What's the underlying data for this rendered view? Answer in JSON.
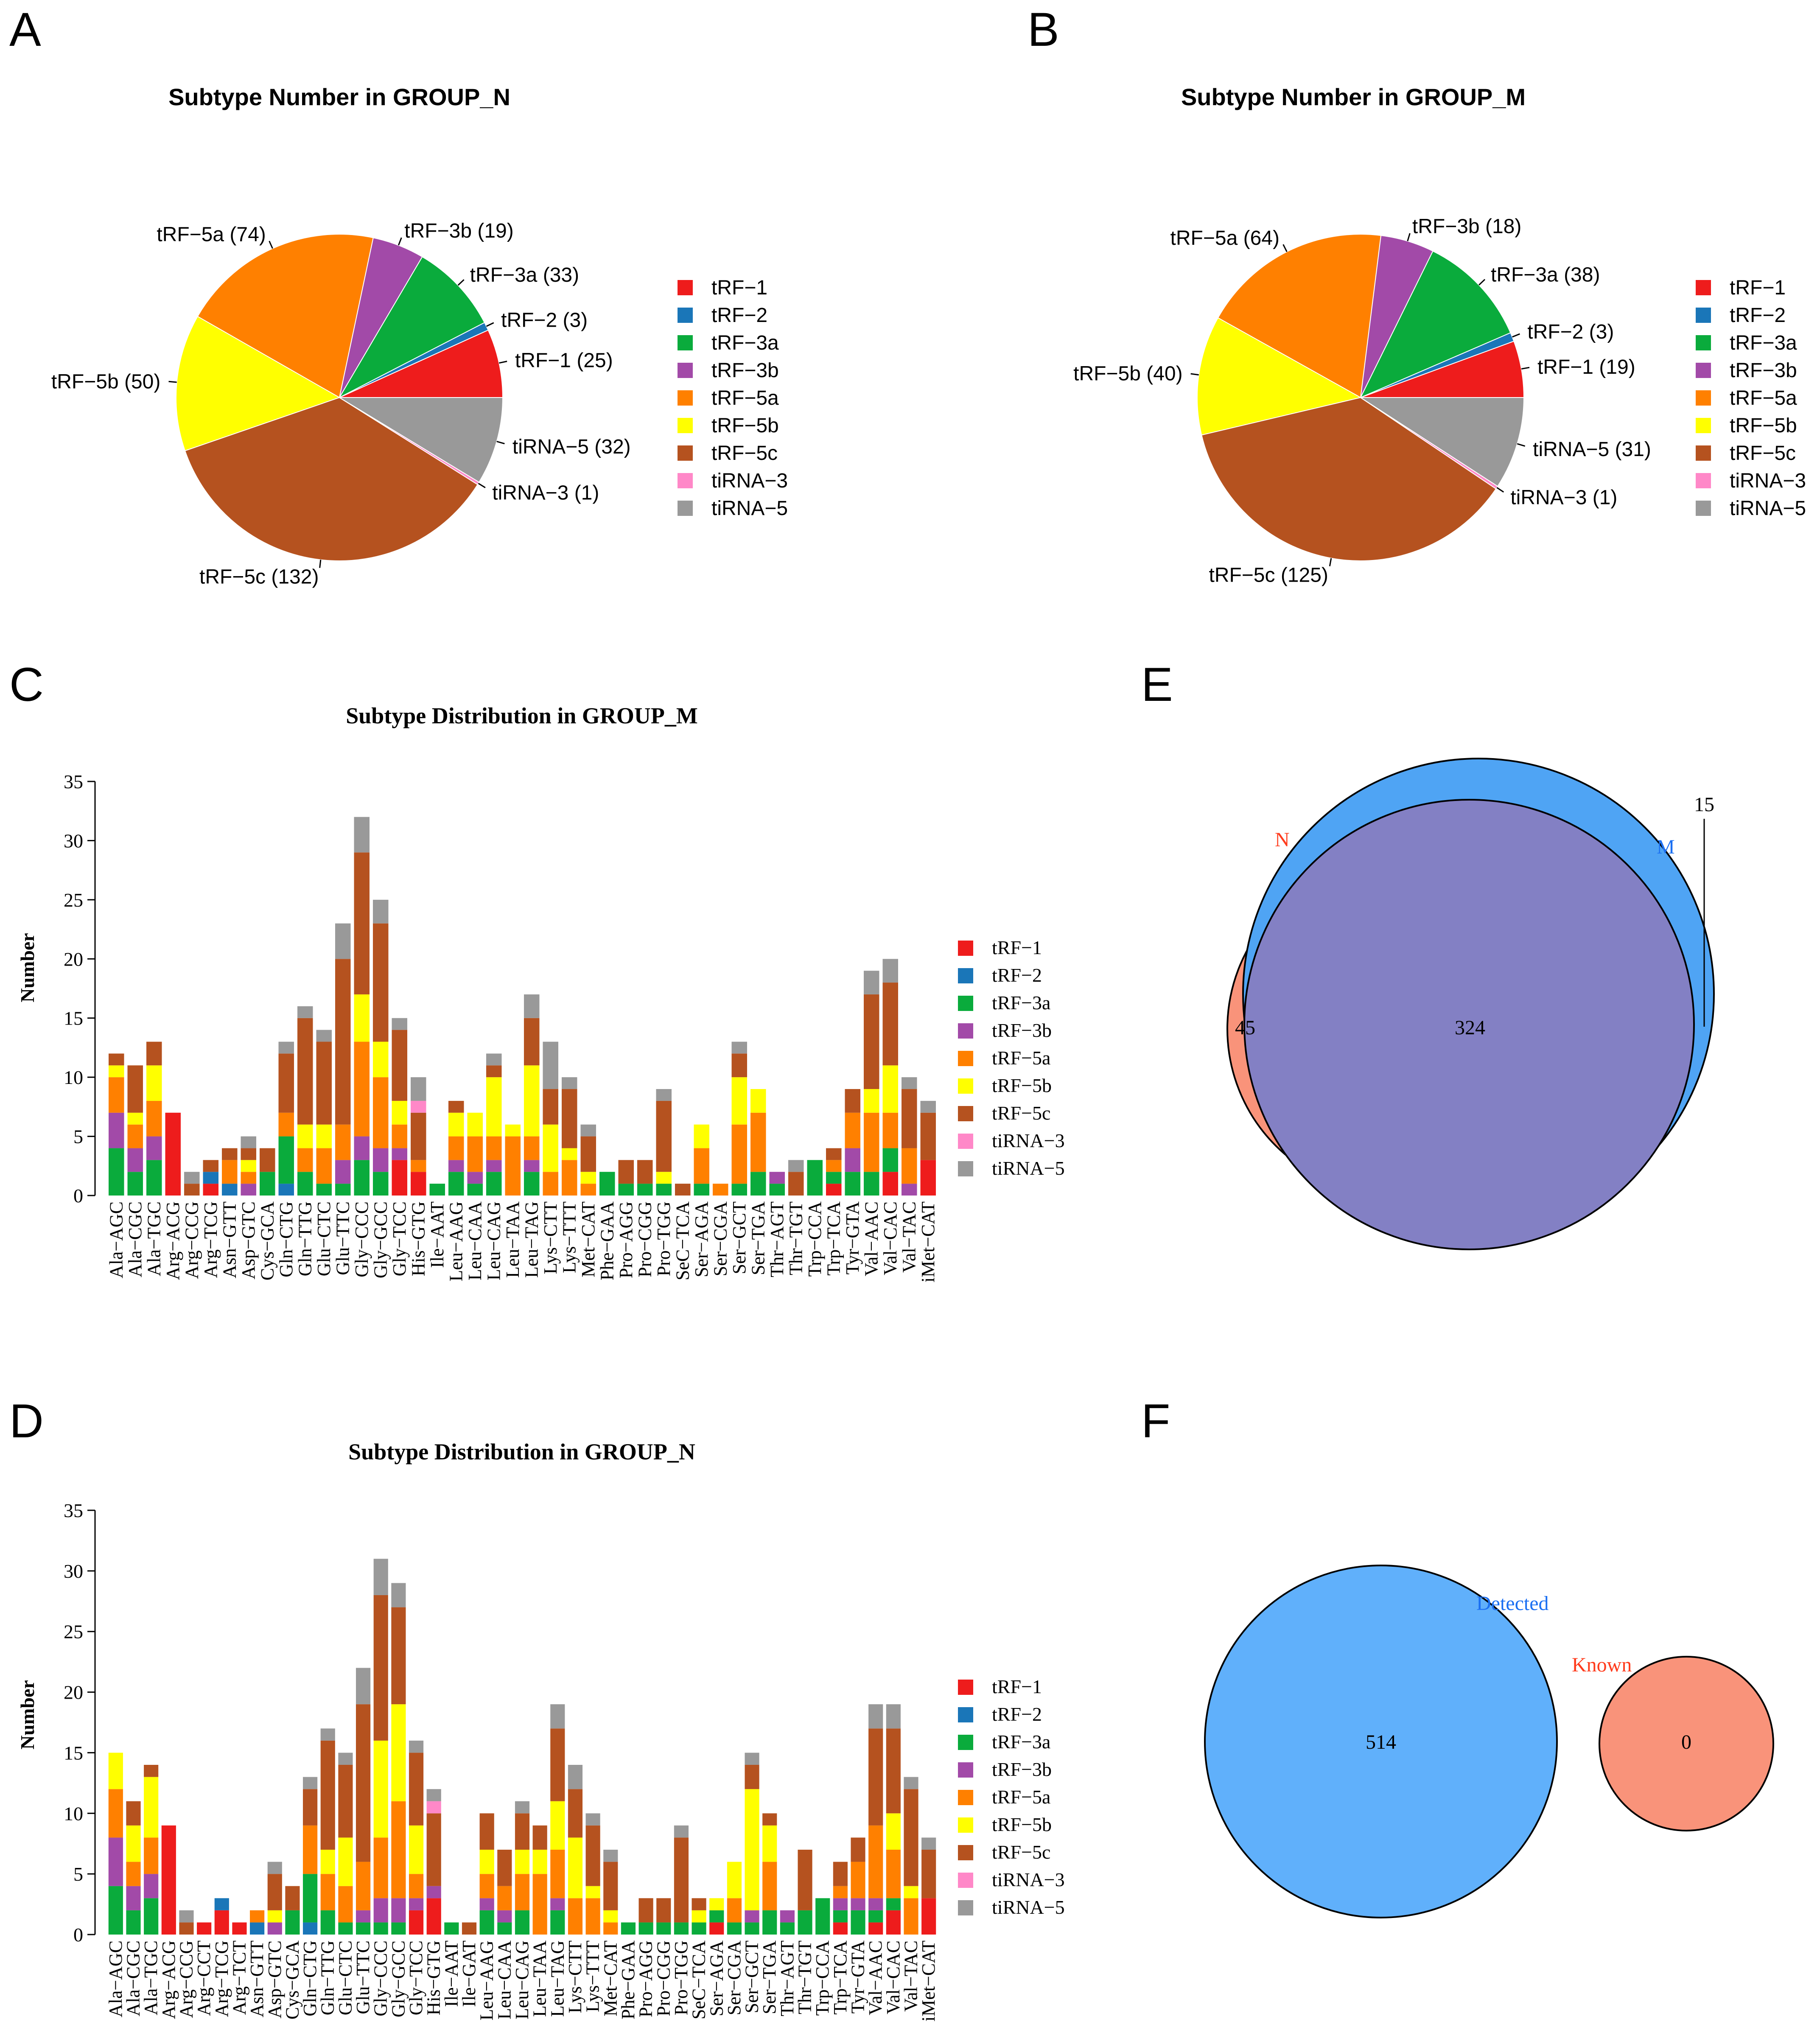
{
  "colors": {
    "tRF-1": "#ee1c1c",
    "tRF-2": "#1a76b8",
    "tRF-3a": "#0aab3c",
    "tRF-3b": "#a24aa8",
    "tRF-5a": "#ff8000",
    "tRF-5b": "#ffff00",
    "tRF-5c": "#b5521f",
    "tiRNA-3": "#ff88c8",
    "tiRNA-5": "#999999",
    "venn_n": "#f9937a",
    "venn_m": "#4fa4f4",
    "venn_overlap": "#8380c4",
    "venn_detected": "#60b0fb",
    "venn_known": "#f9937a",
    "label_n": "#ff3b1c",
    "label_m": "#1a6ff2"
  },
  "subtypes": [
    "tRF-1",
    "tRF-2",
    "tRF-3a",
    "tRF-3b",
    "tRF-5a",
    "tRF-5b",
    "tRF-5c",
    "tiRNA-3",
    "tiRNA-5"
  ],
  "legend_labels": [
    "tRF−1",
    "tRF−2",
    "tRF−3a",
    "tRF−3b",
    "tRF−5a",
    "tRF−5b",
    "tRF−5c",
    "tiRNA−3",
    "tiRNA−5"
  ],
  "panels": {
    "A": {
      "letter": "A"
    },
    "B": {
      "letter": "B"
    },
    "C": {
      "letter": "C"
    },
    "D": {
      "letter": "D"
    },
    "E": {
      "letter": "E"
    },
    "F": {
      "letter": "F"
    }
  },
  "chart_data": [
    {
      "panel": "A",
      "type": "pie",
      "title": "Subtype Number in GROUP_N",
      "labels": [
        "tRF-1",
        "tRF-2",
        "tRF-3a",
        "tRF-3b",
        "tRF-5a",
        "tRF-5b",
        "tRF-5c",
        "tiRNA-3",
        "tiRNA-5"
      ],
      "slice_labels": [
        "tRF−1 (25)",
        "tRF−2 (3)",
        "tRF−3a (33)",
        "tRF−3b (19)",
        "tRF−5a (74)",
        "tRF−5b (50)",
        "tRF−5c (132)",
        "tiRNA−3 (1)",
        "tiRNA−5 (32)"
      ],
      "values": [
        25,
        3,
        33,
        19,
        74,
        50,
        132,
        1,
        32
      ],
      "legend_position": "right"
    },
    {
      "panel": "B",
      "type": "pie",
      "title": "Subtype Number in GROUP_M",
      "labels": [
        "tRF-1",
        "tRF-2",
        "tRF-3a",
        "tRF-3b",
        "tRF-5a",
        "tRF-5b",
        "tRF-5c",
        "tiRNA-3",
        "tiRNA-5"
      ],
      "slice_labels": [
        "tRF−1 (19)",
        "tRF−2 (3)",
        "tRF−3a (38)",
        "tRF−3b (18)",
        "tRF−5a (64)",
        "tRF−5b (40)",
        "tRF−5c (125)",
        "tiRNA−3 (1)",
        "tiRNA−5 (31)"
      ],
      "values": [
        19,
        3,
        38,
        18,
        64,
        40,
        125,
        1,
        31
      ],
      "legend_position": "right"
    },
    {
      "panel": "C",
      "type": "bar",
      "stacked": true,
      "title": "Subtype Distribution in GROUP_M",
      "ylabel": "Number",
      "xlabel": "",
      "ylim": [
        0,
        35
      ],
      "yticks": [
        0,
        5,
        10,
        15,
        20,
        25,
        30,
        35
      ],
      "legend_position": "right",
      "categories": [
        "Ala−AGC",
        "Ala−CGC",
        "Ala−TGC",
        "Arg−ACG",
        "Arg−CCG",
        "Arg−TCG",
        "Asn−GTT",
        "Asp−GTC",
        "Cys−GCA",
        "Gln−CTG",
        "Gln−TTG",
        "Glu−CTC",
        "Glu−TTC",
        "Gly−CCC",
        "Gly−GCC",
        "Gly−TCC",
        "His−GTG",
        "Ile−AAT",
        "Leu−AAG",
        "Leu−CAA",
        "Leu−CAG",
        "Leu−TAA",
        "Leu−TAG",
        "Lys−CTT",
        "Lys−TTT",
        "Met−CAT",
        "Phe−GAA",
        "Pro−AGG",
        "Pro−CGG",
        "Pro−TGG",
        "SeC−TCA",
        "Ser−AGA",
        "Ser−CGA",
        "Ser−GCT",
        "Ser−TGA",
        "Thr−AGT",
        "Thr−TGT",
        "Trp−CCA",
        "Trp−TCA",
        "Tyr−GTA",
        "Val−AAC",
        "Val−CAC",
        "Val−TAC",
        "iMet−CAT"
      ],
      "series": [
        {
          "name": "tRF-1",
          "values": [
            0,
            0,
            0,
            7,
            0,
            1,
            0,
            0,
            0,
            0,
            0,
            0,
            0,
            0,
            0,
            3,
            2,
            0,
            0,
            0,
            0,
            0,
            0,
            0,
            0,
            0,
            0,
            0,
            0,
            0,
            0,
            0,
            0,
            0,
            0,
            0,
            0,
            0,
            1,
            0,
            0,
            2,
            0,
            3
          ]
        },
        {
          "name": "tRF-2",
          "values": [
            0,
            0,
            0,
            0,
            0,
            1,
            1,
            0,
            0,
            1,
            0,
            0,
            0,
            0,
            0,
            0,
            0,
            0,
            0,
            0,
            0,
            0,
            0,
            0,
            0,
            0,
            0,
            0,
            0,
            0,
            0,
            0,
            0,
            0,
            0,
            0,
            0,
            0,
            0,
            0,
            0,
            0,
            0,
            0
          ]
        },
        {
          "name": "tRF-3a",
          "values": [
            4,
            2,
            3,
            0,
            0,
            0,
            0,
            0,
            2,
            4,
            2,
            1,
            1,
            3,
            2,
            0,
            0,
            1,
            2,
            1,
            2,
            0,
            2,
            0,
            0,
            0,
            2,
            1,
            1,
            1,
            0,
            1,
            0,
            1,
            2,
            1,
            0,
            3,
            1,
            2,
            2,
            2,
            0,
            0
          ]
        },
        {
          "name": "tRF-3b",
          "values": [
            3,
            2,
            2,
            0,
            0,
            0,
            0,
            1,
            0,
            0,
            0,
            0,
            2,
            2,
            2,
            1,
            0,
            0,
            1,
            1,
            1,
            0,
            1,
            0,
            0,
            0,
            0,
            0,
            0,
            0,
            0,
            0,
            0,
            0,
            0,
            1,
            0,
            0,
            0,
            2,
            0,
            0,
            1,
            0
          ]
        },
        {
          "name": "tRF-5a",
          "values": [
            3,
            2,
            3,
            0,
            0,
            0,
            2,
            1,
            0,
            2,
            2,
            3,
            3,
            8,
            6,
            2,
            1,
            0,
            2,
            3,
            2,
            5,
            2,
            2,
            3,
            1,
            0,
            0,
            0,
            0,
            0,
            3,
            1,
            5,
            5,
            0,
            0,
            0,
            1,
            3,
            5,
            3,
            3,
            0
          ]
        },
        {
          "name": "tRF-5b",
          "values": [
            1,
            1,
            3,
            0,
            0,
            0,
            0,
            1,
            0,
            0,
            2,
            2,
            0,
            4,
            3,
            2,
            0,
            0,
            2,
            2,
            5,
            1,
            6,
            4,
            1,
            1,
            0,
            0,
            0,
            1,
            0,
            2,
            0,
            4,
            2,
            0,
            0,
            0,
            0,
            0,
            2,
            4,
            0,
            0
          ]
        },
        {
          "name": "tRF-5c",
          "values": [
            1,
            4,
            2,
            0,
            1,
            1,
            1,
            1,
            2,
            5,
            9,
            7,
            14,
            12,
            10,
            6,
            4,
            0,
            1,
            0,
            1,
            0,
            4,
            3,
            5,
            3,
            0,
            2,
            2,
            6,
            1,
            0,
            0,
            2,
            0,
            0,
            2,
            0,
            1,
            2,
            8,
            7,
            5,
            4
          ]
        },
        {
          "name": "tiRNA-3",
          "values": [
            0,
            0,
            0,
            0,
            0,
            0,
            0,
            0,
            0,
            0,
            0,
            0,
            0,
            0,
            0,
            0,
            1,
            0,
            0,
            0,
            0,
            0,
            0,
            0,
            0,
            0,
            0,
            0,
            0,
            0,
            0,
            0,
            0,
            0,
            0,
            0,
            0,
            0,
            0,
            0,
            0,
            0,
            0,
            0
          ]
        },
        {
          "name": "tiRNA-5",
          "values": [
            0,
            0,
            0,
            0,
            1,
            0,
            0,
            1,
            0,
            1,
            1,
            1,
            3,
            3,
            2,
            1,
            2,
            0,
            0,
            0,
            1,
            0,
            2,
            4,
            1,
            1,
            0,
            0,
            0,
            1,
            0,
            0,
            0,
            1,
            0,
            0,
            1,
            0,
            0,
            0,
            2,
            2,
            1,
            1
          ]
        }
      ]
    },
    {
      "panel": "D",
      "type": "bar",
      "stacked": true,
      "title": "Subtype Distribution in GROUP_N",
      "ylabel": "Number",
      "xlabel": "",
      "ylim": [
        0,
        35
      ],
      "yticks": [
        0,
        5,
        10,
        15,
        20,
        25,
        30,
        35
      ],
      "legend_position": "right",
      "categories": [
        "Ala−AGC",
        "Ala−CGC",
        "Ala−TGC",
        "Arg−ACG",
        "Arg−CCG",
        "Arg−CCT",
        "Arg−TCG",
        "Arg−TCT",
        "Asn−GTT",
        "Asp−GTC",
        "Cys−GCA",
        "Gln−CTG",
        "Gln−TTG",
        "Glu−CTC",
        "Glu−TTC",
        "Gly−CCC",
        "Gly−GCC",
        "Gly−TCC",
        "His−GTG",
        "Ile−AAT",
        "Ile−GAT",
        "Leu−AAG",
        "Leu−CAA",
        "Leu−CAG",
        "Leu−TAA",
        "Leu−TAG",
        "Lys−CTT",
        "Lys−TTT",
        "Met−CAT",
        "Phe−GAA",
        "Pro−AGG",
        "Pro−CGG",
        "Pro−TGG",
        "SeC−TCA",
        "Ser−AGA",
        "Ser−CGA",
        "Ser−GCT",
        "Ser−TGA",
        "Thr−AGT",
        "Thr−TGT",
        "Trp−CCA",
        "Trp−TCA",
        "Tyr−GTA",
        "Val−AAC",
        "Val−CAC",
        "Val−TAC",
        "iMet−CAT"
      ],
      "series": [
        {
          "name": "tRF-1",
          "values": [
            0,
            0,
            0,
            9,
            0,
            1,
            2,
            1,
            0,
            0,
            0,
            0,
            0,
            0,
            0,
            0,
            0,
            2,
            3,
            0,
            0,
            0,
            0,
            0,
            0,
            0,
            0,
            0,
            0,
            0,
            0,
            0,
            0,
            0,
            1,
            0,
            0,
            0,
            0,
            0,
            0,
            1,
            0,
            1,
            2,
            0,
            3
          ]
        },
        {
          "name": "tRF-2",
          "values": [
            0,
            0,
            0,
            0,
            0,
            0,
            1,
            0,
            1,
            0,
            0,
            1,
            0,
            0,
            0,
            0,
            0,
            0,
            0,
            0,
            0,
            0,
            0,
            0,
            0,
            0,
            0,
            0,
            0,
            0,
            0,
            0,
            0,
            0,
            0,
            0,
            0,
            0,
            0,
            0,
            0,
            0,
            0,
            0,
            0,
            0,
            0
          ]
        },
        {
          "name": "tRF-3a",
          "values": [
            4,
            2,
            3,
            0,
            0,
            0,
            0,
            0,
            0,
            0,
            2,
            4,
            2,
            1,
            1,
            1,
            1,
            0,
            0,
            1,
            0,
            2,
            1,
            2,
            0,
            2,
            0,
            0,
            0,
            1,
            1,
            1,
            1,
            1,
            1,
            1,
            1,
            2,
            1,
            2,
            3,
            1,
            2,
            1,
            1,
            0,
            0
          ]
        },
        {
          "name": "tRF-3b",
          "values": [
            4,
            2,
            2,
            0,
            0,
            0,
            0,
            0,
            0,
            1,
            0,
            0,
            0,
            0,
            1,
            2,
            2,
            1,
            1,
            0,
            0,
            1,
            1,
            0,
            0,
            1,
            0,
            0,
            0,
            0,
            0,
            0,
            0,
            0,
            0,
            0,
            1,
            0,
            1,
            0,
            0,
            1,
            1,
            1,
            0,
            0,
            0
          ]
        },
        {
          "name": "tRF-5a",
          "values": [
            4,
            2,
            3,
            0,
            0,
            0,
            0,
            0,
            1,
            0,
            0,
            4,
            3,
            3,
            4,
            5,
            8,
            2,
            0,
            0,
            0,
            2,
            2,
            3,
            5,
            4,
            3,
            3,
            1,
            0,
            0,
            0,
            0,
            0,
            0,
            2,
            0,
            4,
            0,
            0,
            0,
            1,
            3,
            6,
            4,
            3,
            0
          ]
        },
        {
          "name": "tRF-5b",
          "values": [
            3,
            3,
            5,
            0,
            0,
            0,
            0,
            0,
            0,
            1,
            0,
            0,
            2,
            4,
            0,
            8,
            8,
            4,
            0,
            0,
            0,
            2,
            0,
            2,
            2,
            4,
            5,
            1,
            1,
            0,
            0,
            0,
            0,
            1,
            1,
            3,
            10,
            3,
            0,
            0,
            0,
            0,
            0,
            0,
            3,
            1,
            0
          ]
        },
        {
          "name": "tRF-5c",
          "values": [
            0,
            2,
            1,
            0,
            1,
            0,
            0,
            0,
            0,
            3,
            2,
            3,
            9,
            6,
            13,
            12,
            8,
            6,
            6,
            0,
            1,
            3,
            3,
            3,
            2,
            6,
            4,
            5,
            4,
            0,
            2,
            2,
            7,
            1,
            0,
            0,
            2,
            1,
            0,
            5,
            0,
            2,
            2,
            8,
            7,
            8,
            4
          ]
        },
        {
          "name": "tiRNA-3",
          "values": [
            0,
            0,
            0,
            0,
            0,
            0,
            0,
            0,
            0,
            0,
            0,
            0,
            0,
            0,
            0,
            0,
            0,
            0,
            1,
            0,
            0,
            0,
            0,
            0,
            0,
            0,
            0,
            0,
            0,
            0,
            0,
            0,
            0,
            0,
            0,
            0,
            0,
            0,
            0,
            0,
            0,
            0,
            0,
            0,
            0,
            0,
            0
          ]
        },
        {
          "name": "tiRNA-5",
          "values": [
            0,
            0,
            0,
            0,
            1,
            0,
            0,
            0,
            0,
            1,
            0,
            1,
            1,
            1,
            3,
            3,
            2,
            1,
            1,
            0,
            0,
            0,
            0,
            1,
            0,
            2,
            2,
            1,
            1,
            0,
            0,
            0,
            1,
            0,
            0,
            0,
            1,
            0,
            0,
            0,
            0,
            0,
            0,
            2,
            2,
            1,
            1
          ]
        }
      ]
    },
    {
      "panel": "E",
      "type": "venn",
      "sets": [
        "N",
        "M"
      ],
      "only_a": 45,
      "only_b": 15,
      "both": 324
    },
    {
      "panel": "F",
      "type": "venn",
      "sets": [
        "Detected",
        "Known"
      ],
      "only_a": 514,
      "only_b": 0,
      "both": 0
    }
  ]
}
